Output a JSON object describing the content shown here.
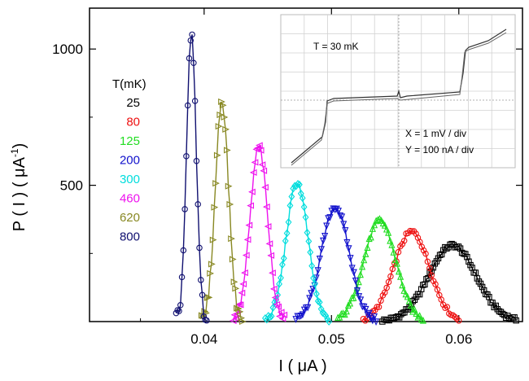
{
  "chart_data": {
    "type": "line",
    "xlabel": "I ( μA )",
    "ylabel_main": "P ( I )  ( μA",
    "ylabel_sup": "-1",
    "ylabel_close": ")",
    "xlim": [
      0.031,
      0.065
    ],
    "ylim": [
      0,
      1150
    ],
    "x_ticks": [
      0.04,
      0.05,
      0.06
    ],
    "x_tick_labels": [
      "0.04",
      "0.05",
      "0.06"
    ],
    "y_ticks": [
      500,
      1000
    ],
    "y_tick_labels": [
      "500",
      "1000"
    ],
    "legend_title": "T(mK)",
    "legend_placement": "left",
    "series": [
      {
        "name": "25",
        "color": "#000000",
        "marker": "square",
        "mean": 0.0595,
        "sigma": 0.00185,
        "peak": 280,
        "n": 80,
        "range": [
          0.054,
          0.0645
        ]
      },
      {
        "name": "80",
        "color": "#ee1111",
        "marker": "circle",
        "mean": 0.0563,
        "sigma": 0.0014,
        "peak": 330,
        "n": 50,
        "range": [
          0.0525,
          0.06
        ]
      },
      {
        "name": "125",
        "color": "#22dd22",
        "marker": "triangle-up",
        "mean": 0.0538,
        "sigma": 0.00125,
        "peak": 370,
        "n": 50,
        "range": [
          0.0505,
          0.0572
        ]
      },
      {
        "name": "200",
        "color": "#1111cc",
        "marker": "triangle-down",
        "mean": 0.0503,
        "sigma": 0.0011,
        "peak": 420,
        "n": 48,
        "range": [
          0.0472,
          0.0535
        ]
      },
      {
        "name": "300",
        "color": "#00dddd",
        "marker": "diamond",
        "mean": 0.0473,
        "sigma": 0.00085,
        "peak": 510,
        "n": 42,
        "range": [
          0.0448,
          0.0498
        ]
      },
      {
        "name": "460",
        "color": "#ee11ee",
        "marker": "triangle-left",
        "mean": 0.0443,
        "sigma": 0.00068,
        "peak": 640,
        "n": 36,
        "range": [
          0.0423,
          0.0463
        ]
      },
      {
        "name": "620",
        "color": "#888822",
        "marker": "triangle-right",
        "mean": 0.0414,
        "sigma": 0.00052,
        "peak": 810,
        "n": 30,
        "range": [
          0.0398,
          0.043
        ]
      },
      {
        "name": "800",
        "color": "#101070",
        "marker": "circle",
        "mean": 0.039,
        "sigma": 0.00038,
        "peak": 1045,
        "n": 22,
        "range": [
          0.0378,
          0.0402
        ]
      }
    ]
  },
  "inset": {
    "temperature_label": "T = 30 mK",
    "x_scale_label": "X = 1 mV / div",
    "y_scale_label": "Y = 100 nA / div"
  }
}
